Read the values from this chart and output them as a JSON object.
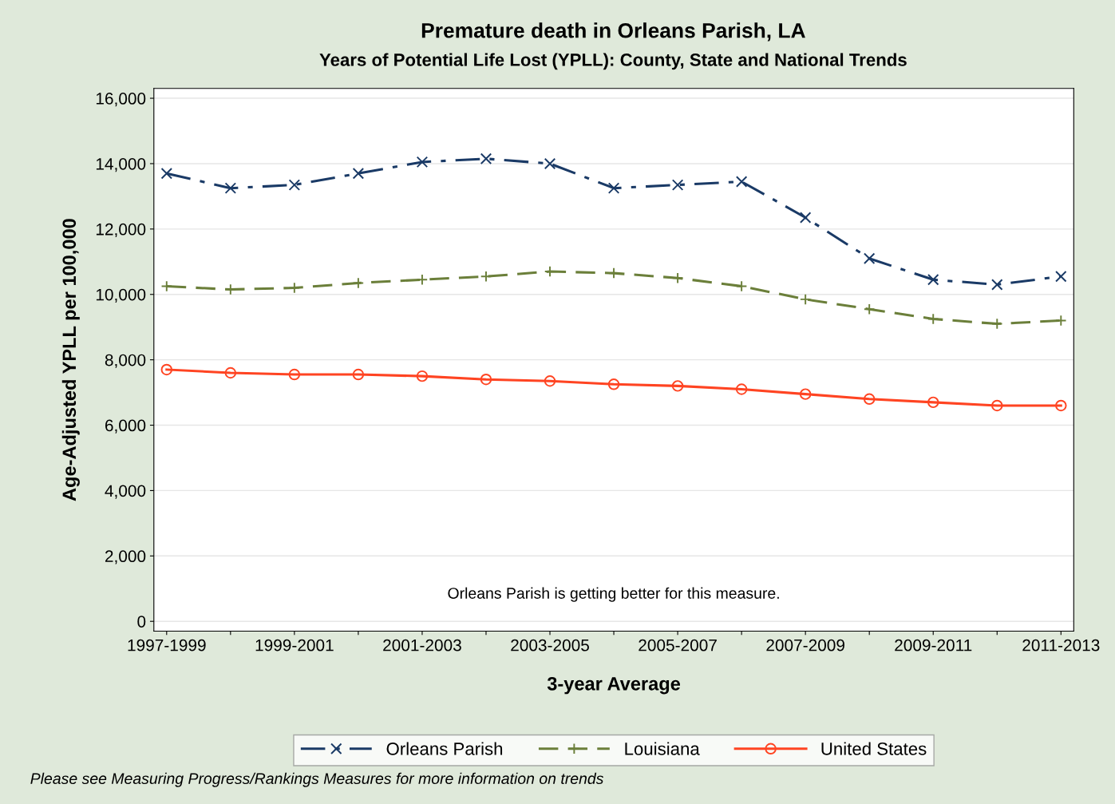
{
  "chart_data": {
    "type": "line",
    "title": "Premature death in Orleans Parish, LA",
    "subtitle": "Years of Potential Life Lost (YPLL): County, State and National Trends",
    "xlabel": "3-year Average",
    "ylabel": "Age-Adjusted YPLL per 100,000",
    "categories": [
      "1997-1999",
      null,
      "1999-2001",
      null,
      "2001-2003",
      null,
      "2003-2005",
      null,
      "2005-2007",
      null,
      "2007-2009",
      null,
      "2009-2011",
      null,
      "2011-2013"
    ],
    "series": [
      {
        "name": "Orleans Parish",
        "color": "#1a3a66",
        "marker": "cross",
        "line_style": "dashdot",
        "values": [
          13700,
          13250,
          13350,
          13700,
          14050,
          14150,
          14000,
          13250,
          13350,
          13450,
          12350,
          11100,
          10450,
          10300,
          10550
        ]
      },
      {
        "name": "Louisiana",
        "color": "#6b7f3a",
        "marker": "plus",
        "line_style": "dashed",
        "values": [
          10250,
          10150,
          10200,
          10350,
          10450,
          10550,
          10700,
          10650,
          10500,
          10250,
          9850,
          9550,
          9250,
          9100,
          9200
        ]
      },
      {
        "name": "United States",
        "color": "#ff4422",
        "marker": "circle",
        "line_style": "solid",
        "values": [
          7700,
          7600,
          7550,
          7550,
          7500,
          7400,
          7350,
          7250,
          7200,
          7100,
          6950,
          6800,
          6700,
          6600,
          6600
        ]
      }
    ],
    "ylim": [
      -300,
      16300
    ],
    "yticks": [
      {
        "value": 0,
        "label": "0"
      },
      {
        "value": 2000,
        "label": "2,000"
      },
      {
        "value": 4000,
        "label": "4,000"
      },
      {
        "value": 6000,
        "label": "6,000"
      },
      {
        "value": 8000,
        "label": "8,000"
      },
      {
        "value": 10000,
        "label": "10,000"
      },
      {
        "value": 12000,
        "label": "12,000"
      },
      {
        "value": 14000,
        "label": "14,000"
      },
      {
        "value": 16000,
        "label": "16,000"
      }
    ],
    "grid": "y",
    "legend": "bottom",
    "annotations": [
      "Orleans Parish is getting better for this measure.",
      "Please see Measuring Progress/Rankings Measures for more information on trends"
    ]
  }
}
